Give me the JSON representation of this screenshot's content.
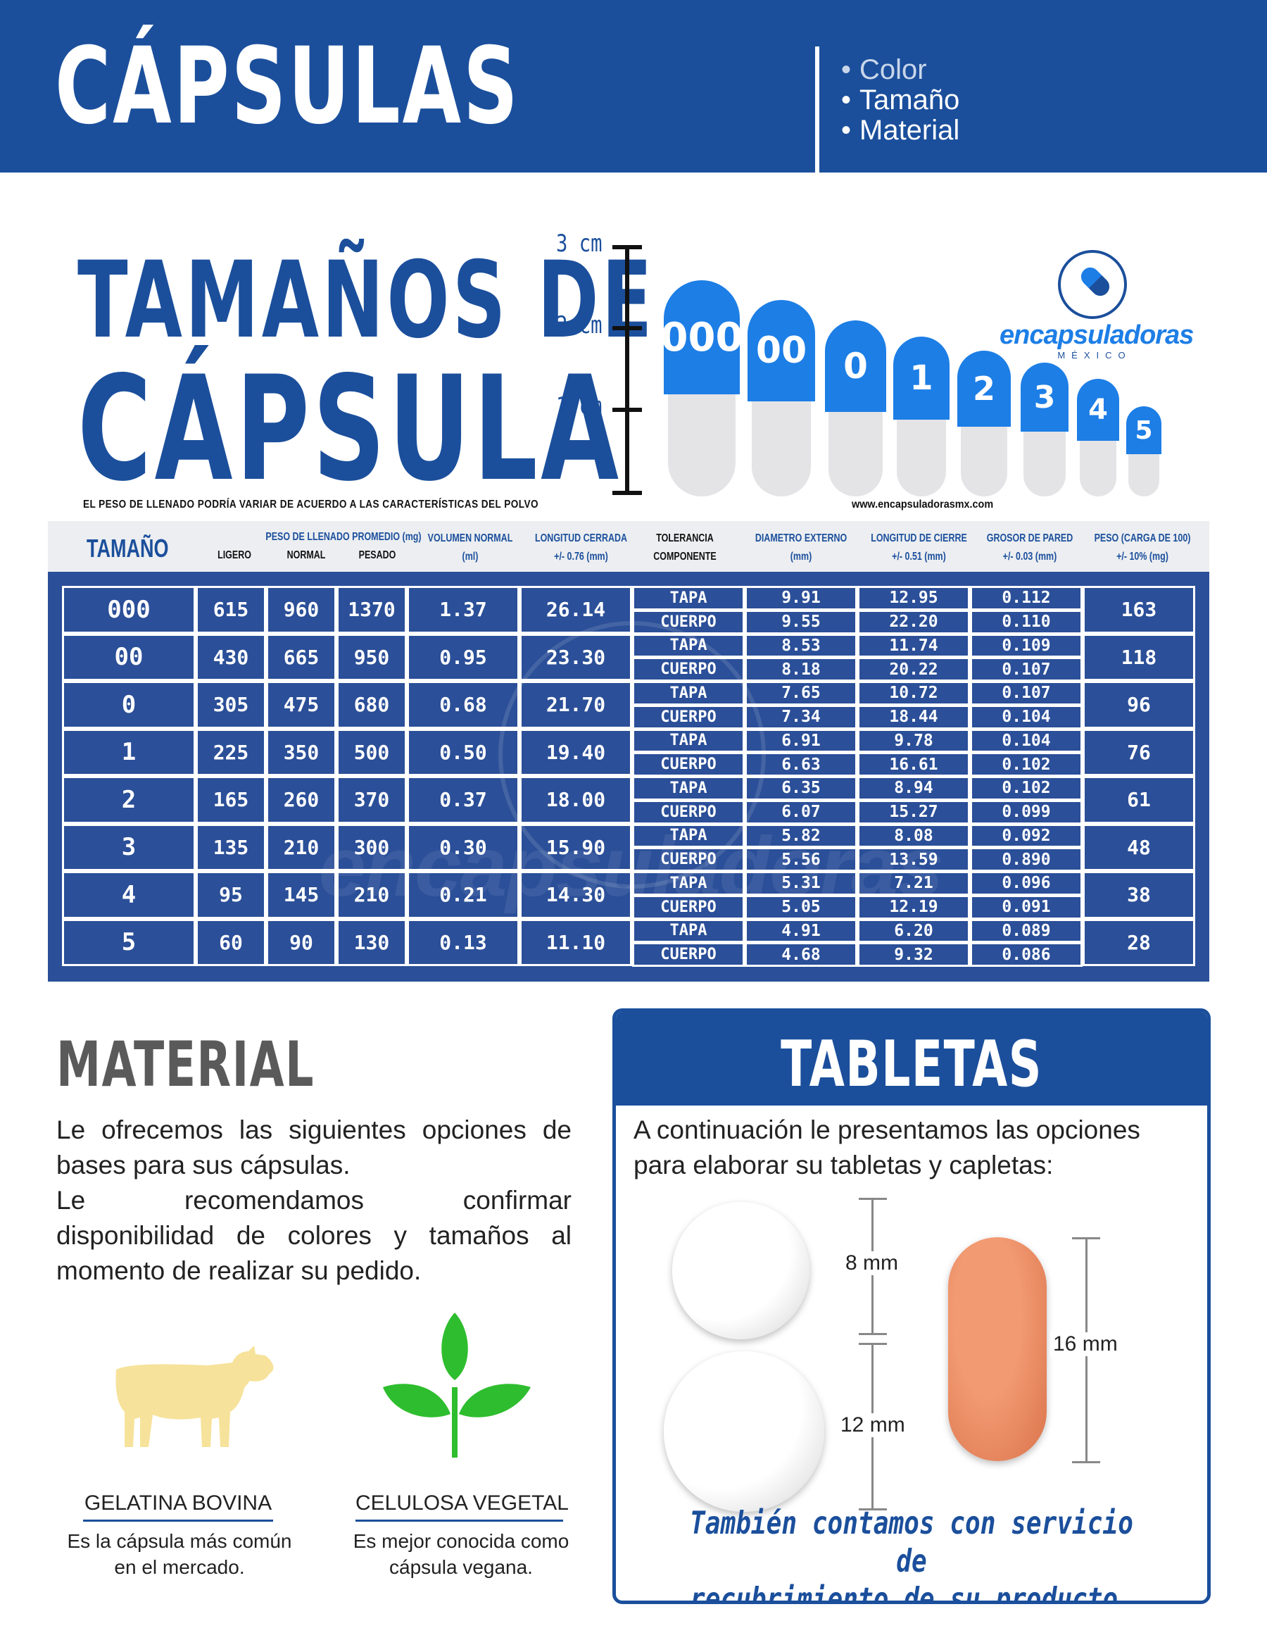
{
  "header": {
    "title": "CÁPSULAS",
    "list": [
      "Color",
      "Tamaño",
      "Material"
    ]
  },
  "sizes_section": {
    "title_line1": "TAMAÑOS DE",
    "title_line2": "CÁPSULA",
    "disclaimer": "EL PESO DE LLENADO PODRÍA VARIAR DE ACUERDO A LAS CARACTERÍSTICAS DEL POLVO",
    "website": "www.encapsuladorasmx.com",
    "ruler_labels": [
      "3 cm",
      "2 cm",
      "1 cm"
    ],
    "capsules": [
      "000",
      "00",
      "0",
      "1",
      "2",
      "3",
      "4",
      "5"
    ],
    "colors": {
      "brand": "#1b4f9c",
      "cap_top": "#1d7ee6",
      "cap_bottom": "#e4e4e6"
    }
  },
  "logo": {
    "name": "encapsuladoras",
    "sub": "MÉXICO"
  },
  "table": {
    "headers": {
      "tamano": "TAMAÑO",
      "peso_llenado": "PESO DE LLENADO PROMEDIO (mg)",
      "ligero": "LIGERO",
      "normal": "NORMAL",
      "pesado": "PESADO",
      "volumen_1": "VOLUMEN NORMAL",
      "volumen_2": "(ml)",
      "longitud_1": "LONGITUD CERRADA",
      "longitud_2": "+/- 0.76 (mm)",
      "tolerancia_1": "TOLERANCIA",
      "tolerancia_2": "COMPONENTE",
      "diametro_1": "DIAMETRO EXTERNO",
      "diametro_2": "(mm)",
      "cierre_1": "LONGITUD DE CIERRE",
      "cierre_2": "+/- 0.51 (mm)",
      "grosor_1": "GROSOR DE PARED",
      "grosor_2": "+/- 0.03 (mm)",
      "peso_1": "PESO (CARGA DE 100)",
      "peso_2": "+/- 10% (mg)"
    },
    "rows": [
      {
        "size": "000",
        "ligero": "615",
        "normal": "960",
        "pesado": "1370",
        "vol": "1.37",
        "long": "26.14",
        "comp": [
          "TAPA",
          "CUERPO"
        ],
        "diam": [
          "9.91",
          "9.55"
        ],
        "cierre": [
          "12.95",
          "22.20"
        ],
        "grosor": [
          "0.112",
          "0.110"
        ],
        "peso": "163"
      },
      {
        "size": "00",
        "ligero": "430",
        "normal": "665",
        "pesado": "950",
        "vol": "0.95",
        "long": "23.30",
        "comp": [
          "TAPA",
          "CUERPO"
        ],
        "diam": [
          "8.53",
          "8.18"
        ],
        "cierre": [
          "11.74",
          "20.22"
        ],
        "grosor": [
          "0.109",
          "0.107"
        ],
        "peso": "118"
      },
      {
        "size": "0",
        "ligero": "305",
        "normal": "475",
        "pesado": "680",
        "vol": "0.68",
        "long": "21.70",
        "comp": [
          "TAPA",
          "CUERPO"
        ],
        "diam": [
          "7.65",
          "7.34"
        ],
        "cierre": [
          "10.72",
          "18.44"
        ],
        "grosor": [
          "0.107",
          "0.104"
        ],
        "peso": "96"
      },
      {
        "size": "1",
        "ligero": "225",
        "normal": "350",
        "pesado": "500",
        "vol": "0.50",
        "long": "19.40",
        "comp": [
          "TAPA",
          "CUERPO"
        ],
        "diam": [
          "6.91",
          "6.63"
        ],
        "cierre": [
          "9.78",
          "16.61"
        ],
        "grosor": [
          "0.104",
          "0.102"
        ],
        "peso": "76"
      },
      {
        "size": "2",
        "ligero": "165",
        "normal": "260",
        "pesado": "370",
        "vol": "0.37",
        "long": "18.00",
        "comp": [
          "TAPA",
          "CUERPO"
        ],
        "diam": [
          "6.35",
          "6.07"
        ],
        "cierre": [
          "8.94",
          "15.27"
        ],
        "grosor": [
          "0.102",
          "0.099"
        ],
        "peso": "61"
      },
      {
        "size": "3",
        "ligero": "135",
        "normal": "210",
        "pesado": "300",
        "vol": "0.30",
        "long": "15.90",
        "comp": [
          "TAPA",
          "CUERPO"
        ],
        "diam": [
          "5.82",
          "5.56"
        ],
        "cierre": [
          "8.08",
          "13.59"
        ],
        "grosor": [
          "0.092",
          "0.890"
        ],
        "peso": "48"
      },
      {
        "size": "4",
        "ligero": "95",
        "normal": "145",
        "pesado": "210",
        "vol": "0.21",
        "long": "14.30",
        "comp": [
          "TAPA",
          "CUERPO"
        ],
        "diam": [
          "5.31",
          "5.05"
        ],
        "cierre": [
          "7.21",
          "12.19"
        ],
        "grosor": [
          "0.096",
          "0.091"
        ],
        "peso": "38"
      },
      {
        "size": "5",
        "ligero": "60",
        "normal": "90",
        "pesado": "130",
        "vol": "0.13",
        "long": "11.10",
        "comp": [
          "TAPA",
          "CUERPO"
        ],
        "diam": [
          "4.91",
          "4.68"
        ],
        "cierre": [
          "6.20",
          "9.32"
        ],
        "grosor": [
          "0.089",
          "0.086"
        ],
        "peso": "28"
      }
    ]
  },
  "material": {
    "title": "MATERIAL",
    "p1": "Le ofrecemos las siguientes opciones de bases para sus cápsulas.",
    "p2_line1": "Le recomendamos confirmar",
    "p2_rest": "disponibilidad de colores y tamaños al momento de realizar su pedido.",
    "options": [
      {
        "label": "GELATINA BOVINA",
        "desc_line1": "Es la cápsula más común",
        "desc_line2": "en el mercado.",
        "icon": "cow-icon",
        "color": "#f6e29a"
      },
      {
        "label": "CELULOSA VEGETAL",
        "desc_line1": "Es mejor conocida como",
        "desc_line2": "cápsula vegana.",
        "icon": "leaf-icon",
        "color": "#2ebd2e"
      }
    ]
  },
  "tabletas": {
    "title": "TABLETAS",
    "intro": "A continuación le presentamos las opciones para elaborar su tabletas y capletas:",
    "dims": [
      "8 mm",
      "12 mm",
      "16 mm"
    ],
    "footer_line1": "También contamos con servicio de",
    "footer_line2": "recubrimiento de su producto."
  }
}
